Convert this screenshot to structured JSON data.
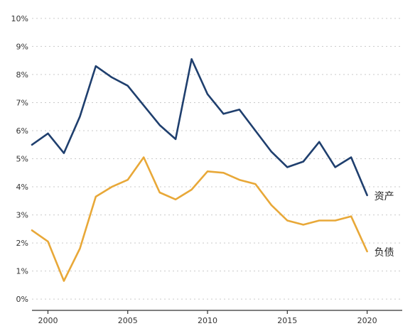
{
  "chart_data": {
    "type": "line",
    "title": "",
    "xlabel": "",
    "ylabel": "",
    "x": [
      1999,
      2000,
      2001,
      2002,
      2003,
      2004,
      2005,
      2006,
      2007,
      2008,
      2009,
      2010,
      2011,
      2012,
      2013,
      2014,
      2015,
      2016,
      2017,
      2018,
      2019,
      2020
    ],
    "xlim": [
      1999,
      2022.2
    ],
    "x_ticks": [
      2000,
      2005,
      2010,
      2015,
      2020
    ],
    "ylim": [
      -0.4,
      10.3
    ],
    "y_ticks": [
      0,
      1,
      2,
      3,
      4,
      5,
      6,
      7,
      8,
      9,
      10
    ],
    "y_tick_suffix": "%",
    "grid": "horizontal dotted",
    "legend": "inline labels at line ends",
    "series": [
      {
        "name": "资产",
        "color": "#1f3f6e",
        "values": [
          5.5,
          5.9,
          5.2,
          6.5,
          8.3,
          7.9,
          7.6,
          6.9,
          6.2,
          5.7,
          8.55,
          7.3,
          6.6,
          6.75,
          6.0,
          5.25,
          4.7,
          4.9,
          5.6,
          4.7,
          5.05,
          3.7
        ]
      },
      {
        "name": "负债",
        "color": "#e8a838",
        "values": [
          2.45,
          2.05,
          0.65,
          1.8,
          3.65,
          4.0,
          4.25,
          5.05,
          3.8,
          3.55,
          3.9,
          4.55,
          4.5,
          4.25,
          4.1,
          3.35,
          2.8,
          2.65,
          2.8,
          2.8,
          2.95,
          1.7
        ]
      }
    ]
  }
}
